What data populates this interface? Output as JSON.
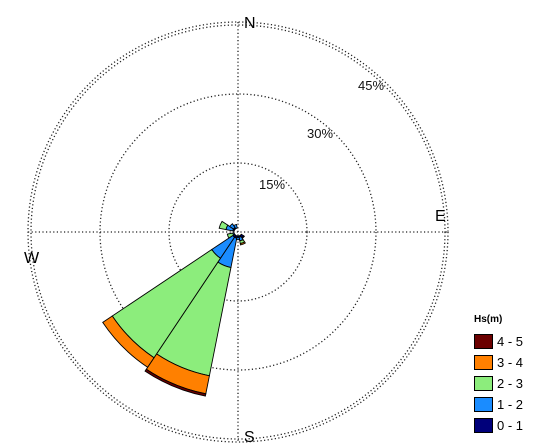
{
  "chart_data": {
    "type": "rose",
    "legend_title": "Hs(m)",
    "legend_position": "bottom-right",
    "radial_ticks": [
      {
        "value": 15,
        "label": "15%"
      },
      {
        "value": 30,
        "label": "30%"
      },
      {
        "value": 45,
        "label": "45%"
      }
    ],
    "directions": [
      {
        "label": "N",
        "angle": 0
      },
      {
        "label": "E",
        "angle": 90
      },
      {
        "label": "S",
        "angle": 180
      },
      {
        "label": "W",
        "angle": 270
      }
    ],
    "classes": [
      {
        "label": "0 - 1",
        "color": "#00007a"
      },
      {
        "label": "1 - 2",
        "color": "#1a8cff"
      },
      {
        "label": "2 - 3",
        "color": "#8ced7c"
      },
      {
        "label": "3 - 4",
        "color": "#ff8000"
      },
      {
        "label": "4 - 5",
        "color": "#6b0000"
      }
    ],
    "bins": [
      {
        "direction": 202.5,
        "values": [
          0.5,
          6.5,
          24,
          4,
          0.5
        ]
      },
      {
        "direction": 225.0,
        "values": [
          0.5,
          5.5,
          26,
          2.5,
          0
        ]
      },
      {
        "direction": 247.5,
        "values": [
          0,
          0.3,
          1.2,
          0,
          0
        ]
      },
      {
        "direction": 292.5,
        "values": [
          0.3,
          1.5,
          1.5,
          0,
          0
        ]
      },
      {
        "direction": 315.0,
        "values": [
          0.3,
          1.0,
          0,
          0,
          0
        ]
      },
      {
        "direction": 337.5,
        "values": [
          0,
          0.8,
          0,
          0,
          0
        ]
      },
      {
        "direction": 135.0,
        "values": [
          0.6,
          0.2,
          0,
          0,
          0
        ]
      },
      {
        "direction": 157.5,
        "values": [
          0.3,
          0.8,
          0.6,
          0.3,
          0
        ]
      },
      {
        "direction": 180.0,
        "values": [
          0.3,
          0.5,
          0,
          0,
          0
        ]
      }
    ],
    "sector_width": 22.5
  }
}
